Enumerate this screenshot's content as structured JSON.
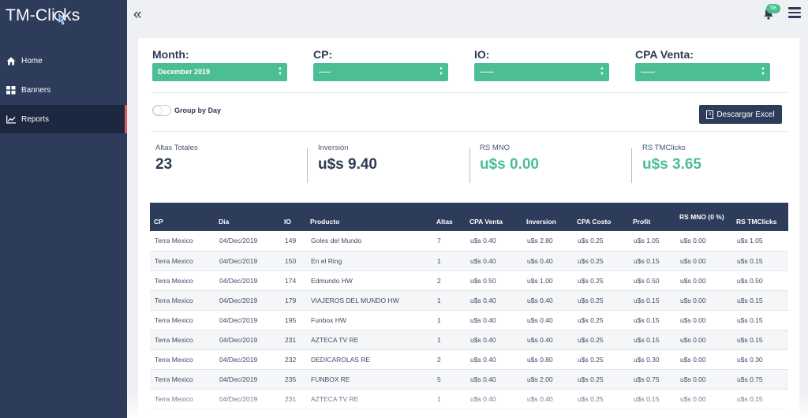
{
  "app": {
    "logo_text_prefix": "TM-Cli",
    "logo_text_suffix": "ks",
    "notification_count": "58"
  },
  "sidebar": {
    "items": [
      {
        "label": "Home",
        "icon": "home-icon"
      },
      {
        "label": "Banners",
        "icon": "grid-icon"
      },
      {
        "label": "Reports",
        "icon": "chart-line-icon",
        "active": true
      }
    ]
  },
  "filters": {
    "month": {
      "label": "Month:",
      "value": "December 2019"
    },
    "cp": {
      "label": "CP:",
      "value": "-----"
    },
    "io": {
      "label": "IO:",
      "value": "------"
    },
    "cpa_venta": {
      "label": "CPA Venta:",
      "value": "------"
    }
  },
  "group_by_day": {
    "label": "Group by Day",
    "on": false
  },
  "excel_button": {
    "label": "Descargar Excel"
  },
  "stats": [
    {
      "label": "Altas Totales",
      "value": "23",
      "color": "#2c3a55"
    },
    {
      "label": "Inversión",
      "value": "u$s 9.40",
      "color": "#2c3a55"
    },
    {
      "label": "RS MNO",
      "value": "u$s 0.00",
      "color": "#4cbe93"
    },
    {
      "label": "RS TMClicks",
      "value": "u$s 3.65",
      "color": "#4cbe93"
    }
  ],
  "colors": {
    "sidebar": "#2d3c5a",
    "accent_green": "#4cbe93",
    "active_marker": "#e0565b"
  },
  "table": {
    "headers": [
      "CP",
      "Dia",
      "IO",
      "Producto",
      "Altas",
      "CPA Venta",
      "Inversion",
      "CPA Costo",
      "Profit",
      "RS MNO (0 %)",
      "RS TMClicks"
    ],
    "rows": [
      [
        "Terra Mexico",
        "04/Dec/2019",
        "149",
        "Goles del Mundo",
        "7",
        "u$s 0.40",
        "u$s 2.80",
        "u$s 0.25",
        "u$s 1.05",
        "u$s 0.00",
        "u$s 1.05"
      ],
      [
        "Terra Mexico",
        "04/Dec/2019",
        "150",
        "En el Ring",
        "1",
        "u$s 0.40",
        "u$s 0.40",
        "u$s 0.25",
        "u$s 0.15",
        "u$s 0.00",
        "u$s 0.15"
      ],
      [
        "Terra Mexico",
        "04/Dec/2019",
        "174",
        "Edmundo HW",
        "2",
        "u$s 0.50",
        "u$s 1.00",
        "u$s 0.25",
        "u$s 0.50",
        "u$s 0.00",
        "u$s 0.50"
      ],
      [
        "Terra Mexico",
        "04/Dec/2019",
        "179",
        "VIAJEROS DEL MUNDO HW",
        "1",
        "u$s 0.40",
        "u$s 0.40",
        "u$s 0.25",
        "u$s 0.15",
        "u$s 0.00",
        "u$s 0.15"
      ],
      [
        "Terra Mexico",
        "04/Dec/2019",
        "195",
        "Funbox HW",
        "1",
        "u$s 0.40",
        "u$s 0.40",
        "u$s 0.25",
        "u$s 0.15",
        "u$s 0.00",
        "u$s 0.15"
      ],
      [
        "Terra Mexico",
        "04/Dec/2019",
        "231",
        "AZTECA TV RE",
        "1",
        "u$s 0.40",
        "u$s 0.40",
        "u$s 0.25",
        "u$s 0.15",
        "u$s 0.00",
        "u$s 0.15"
      ],
      [
        "Terra Mexico",
        "04/Dec/2019",
        "232",
        "DEDICAROLAS RE",
        "2",
        "u$s 0.40",
        "u$s 0.80",
        "u$s 0.25",
        "u$s 0.30",
        "u$s 0.00",
        "u$s 0.30"
      ],
      [
        "Terra Mexico",
        "04/Dec/2019",
        "235",
        "FUNBOX RE",
        "5",
        "u$s 0.40",
        "u$s 2.00",
        "u$s 0.25",
        "u$s 0.75",
        "u$s 0.00",
        "u$s 0.75"
      ],
      [
        "Terra Mexico",
        "04/Dec/2019",
        "231",
        "AZTECA TV RE",
        "1",
        "u$s 0.40",
        "u$s 0.40",
        "u$s 0.25",
        "u$s 0.15",
        "u$s 0.00",
        "u$s 0.15"
      ]
    ]
  }
}
